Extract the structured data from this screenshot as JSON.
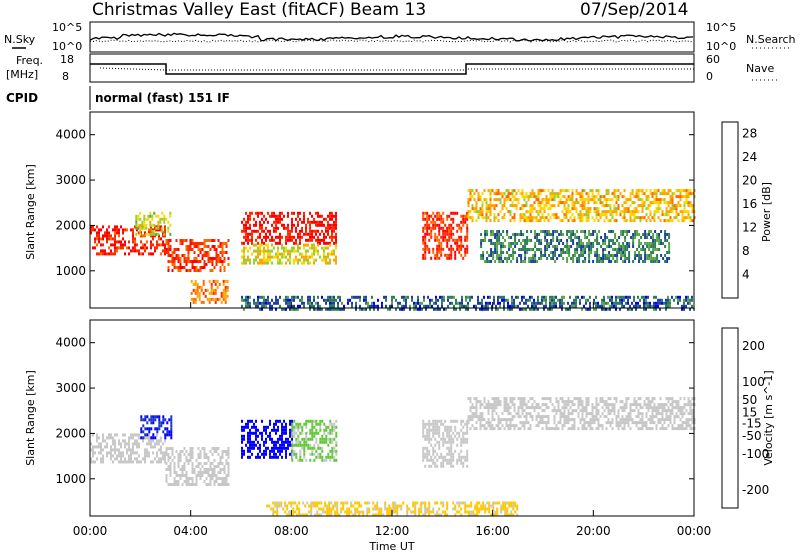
{
  "header": {
    "title": "Christmas Valley East (fitACF)",
    "beam_label": "Beam 13",
    "date": "07/Sep/2014"
  },
  "params": {
    "nsky_label": "N.Sky",
    "nsearch_label": "N.Search",
    "freq_label": "Freq.",
    "freq_unit": "[MHz]",
    "nave_label": "Nave",
    "cpid_label": "CPID",
    "cpid_value": "normal (fast) 151 IF",
    "noise_left_ticks": [
      "10^5",
      "10^0"
    ],
    "noise_right_ticks": [
      "10^5",
      "10^0"
    ],
    "freq_ticks": [
      "18",
      "8"
    ],
    "nave_ticks": [
      "60",
      "0"
    ]
  },
  "colors": {
    "power_scale": [
      "#0000ff",
      "#1f3f9f",
      "#2e7d5a",
      "#5aa54a",
      "#8fd23a",
      "#ffd700",
      "#ffa500",
      "#ff6a00",
      "#ff2a00",
      "#ff0000"
    ],
    "velocity_scale": [
      "#ff0000",
      "#ff5a00",
      "#ff9a00",
      "#ffc800",
      "#c8c8c8",
      "#c8c8c8",
      "#62c83a",
      "#2a8a2a",
      "#1a3ab8",
      "#0000ff"
    ]
  },
  "chart_data": [
    {
      "type": "heatmap",
      "name": "power-panel",
      "xlabel": "",
      "ylabel": "Slant Range [km]",
      "ylim": [
        180,
        4500
      ],
      "xlim": [
        0,
        24
      ],
      "yticks": [
        "4000",
        "3000",
        "2000",
        "1000"
      ],
      "colorbar": {
        "label": "Power [dB]",
        "range": [
          0,
          30
        ],
        "ticks": [
          "28",
          "24",
          "20",
          "16",
          "12",
          "8",
          "4"
        ]
      },
      "features": [
        {
          "start": 0.0,
          "end": 3.0,
          "range_low": 1400,
          "range_high": 2000,
          "power": 27
        },
        {
          "start": 1.8,
          "end": 3.2,
          "range_low": 1800,
          "range_high": 2300,
          "power": 15
        },
        {
          "start": 3.0,
          "end": 5.5,
          "range_low": 1000,
          "range_high": 1700,
          "power": 25
        },
        {
          "start": 4.0,
          "end": 5.5,
          "range_low": 300,
          "range_high": 800,
          "power": 22
        },
        {
          "start": 6.0,
          "end": 9.8,
          "range_low": 1600,
          "range_high": 2300,
          "power": 28
        },
        {
          "start": 6.0,
          "end": 9.8,
          "range_low": 1200,
          "range_high": 1600,
          "power": 16
        },
        {
          "start": 13.2,
          "end": 15.0,
          "range_low": 1300,
          "range_high": 2300,
          "power": 26
        },
        {
          "start": 15.0,
          "end": 24.0,
          "range_low": 2100,
          "range_high": 2800,
          "power": 18
        },
        {
          "start": 15.5,
          "end": 23.0,
          "range_low": 1200,
          "range_high": 1900,
          "power": 8
        },
        {
          "start": 6.0,
          "end": 24.0,
          "range_low": 180,
          "range_high": 450,
          "power": 6
        }
      ]
    },
    {
      "type": "heatmap",
      "name": "velocity-panel",
      "xlabel": "Time UT",
      "ylabel": "Slant Range [km]",
      "ylim": [
        180,
        4500
      ],
      "xlim": [
        0,
        24
      ],
      "yticks": [
        "4000",
        "3000",
        "2000",
        "1000"
      ],
      "xticks": [
        "00:00",
        "04:00",
        "08:00",
        "12:00",
        "16:00",
        "20:00",
        "00:00"
      ],
      "colorbar": {
        "label": "Velocity [m s^-1]",
        "range": [
          -250,
          250
        ],
        "ticks": [
          "200",
          "100",
          "50",
          "15",
          "-15",
          "-50",
          "-100",
          "-200"
        ]
      },
      "features": [
        {
          "start": 0.0,
          "end": 3.0,
          "range_low": 1400,
          "range_high": 2000,
          "velocity": 0
        },
        {
          "start": 2.0,
          "end": 3.2,
          "range_low": 1900,
          "range_high": 2400,
          "velocity": 200
        },
        {
          "start": 3.0,
          "end": 5.5,
          "range_low": 900,
          "range_high": 1700,
          "velocity": 0
        },
        {
          "start": 6.0,
          "end": 8.0,
          "range_low": 1500,
          "range_high": 2300,
          "velocity": 220
        },
        {
          "start": 8.0,
          "end": 9.8,
          "range_low": 1400,
          "range_high": 2300,
          "velocity": 60
        },
        {
          "start": 13.2,
          "end": 15.0,
          "range_low": 1300,
          "range_high": 2300,
          "velocity": 0
        },
        {
          "start": 15.0,
          "end": 24.0,
          "range_low": 2100,
          "range_high": 2800,
          "velocity": 0
        },
        {
          "start": 7.0,
          "end": 17.0,
          "range_low": 180,
          "range_high": 500,
          "velocity": -60
        }
      ]
    }
  ]
}
